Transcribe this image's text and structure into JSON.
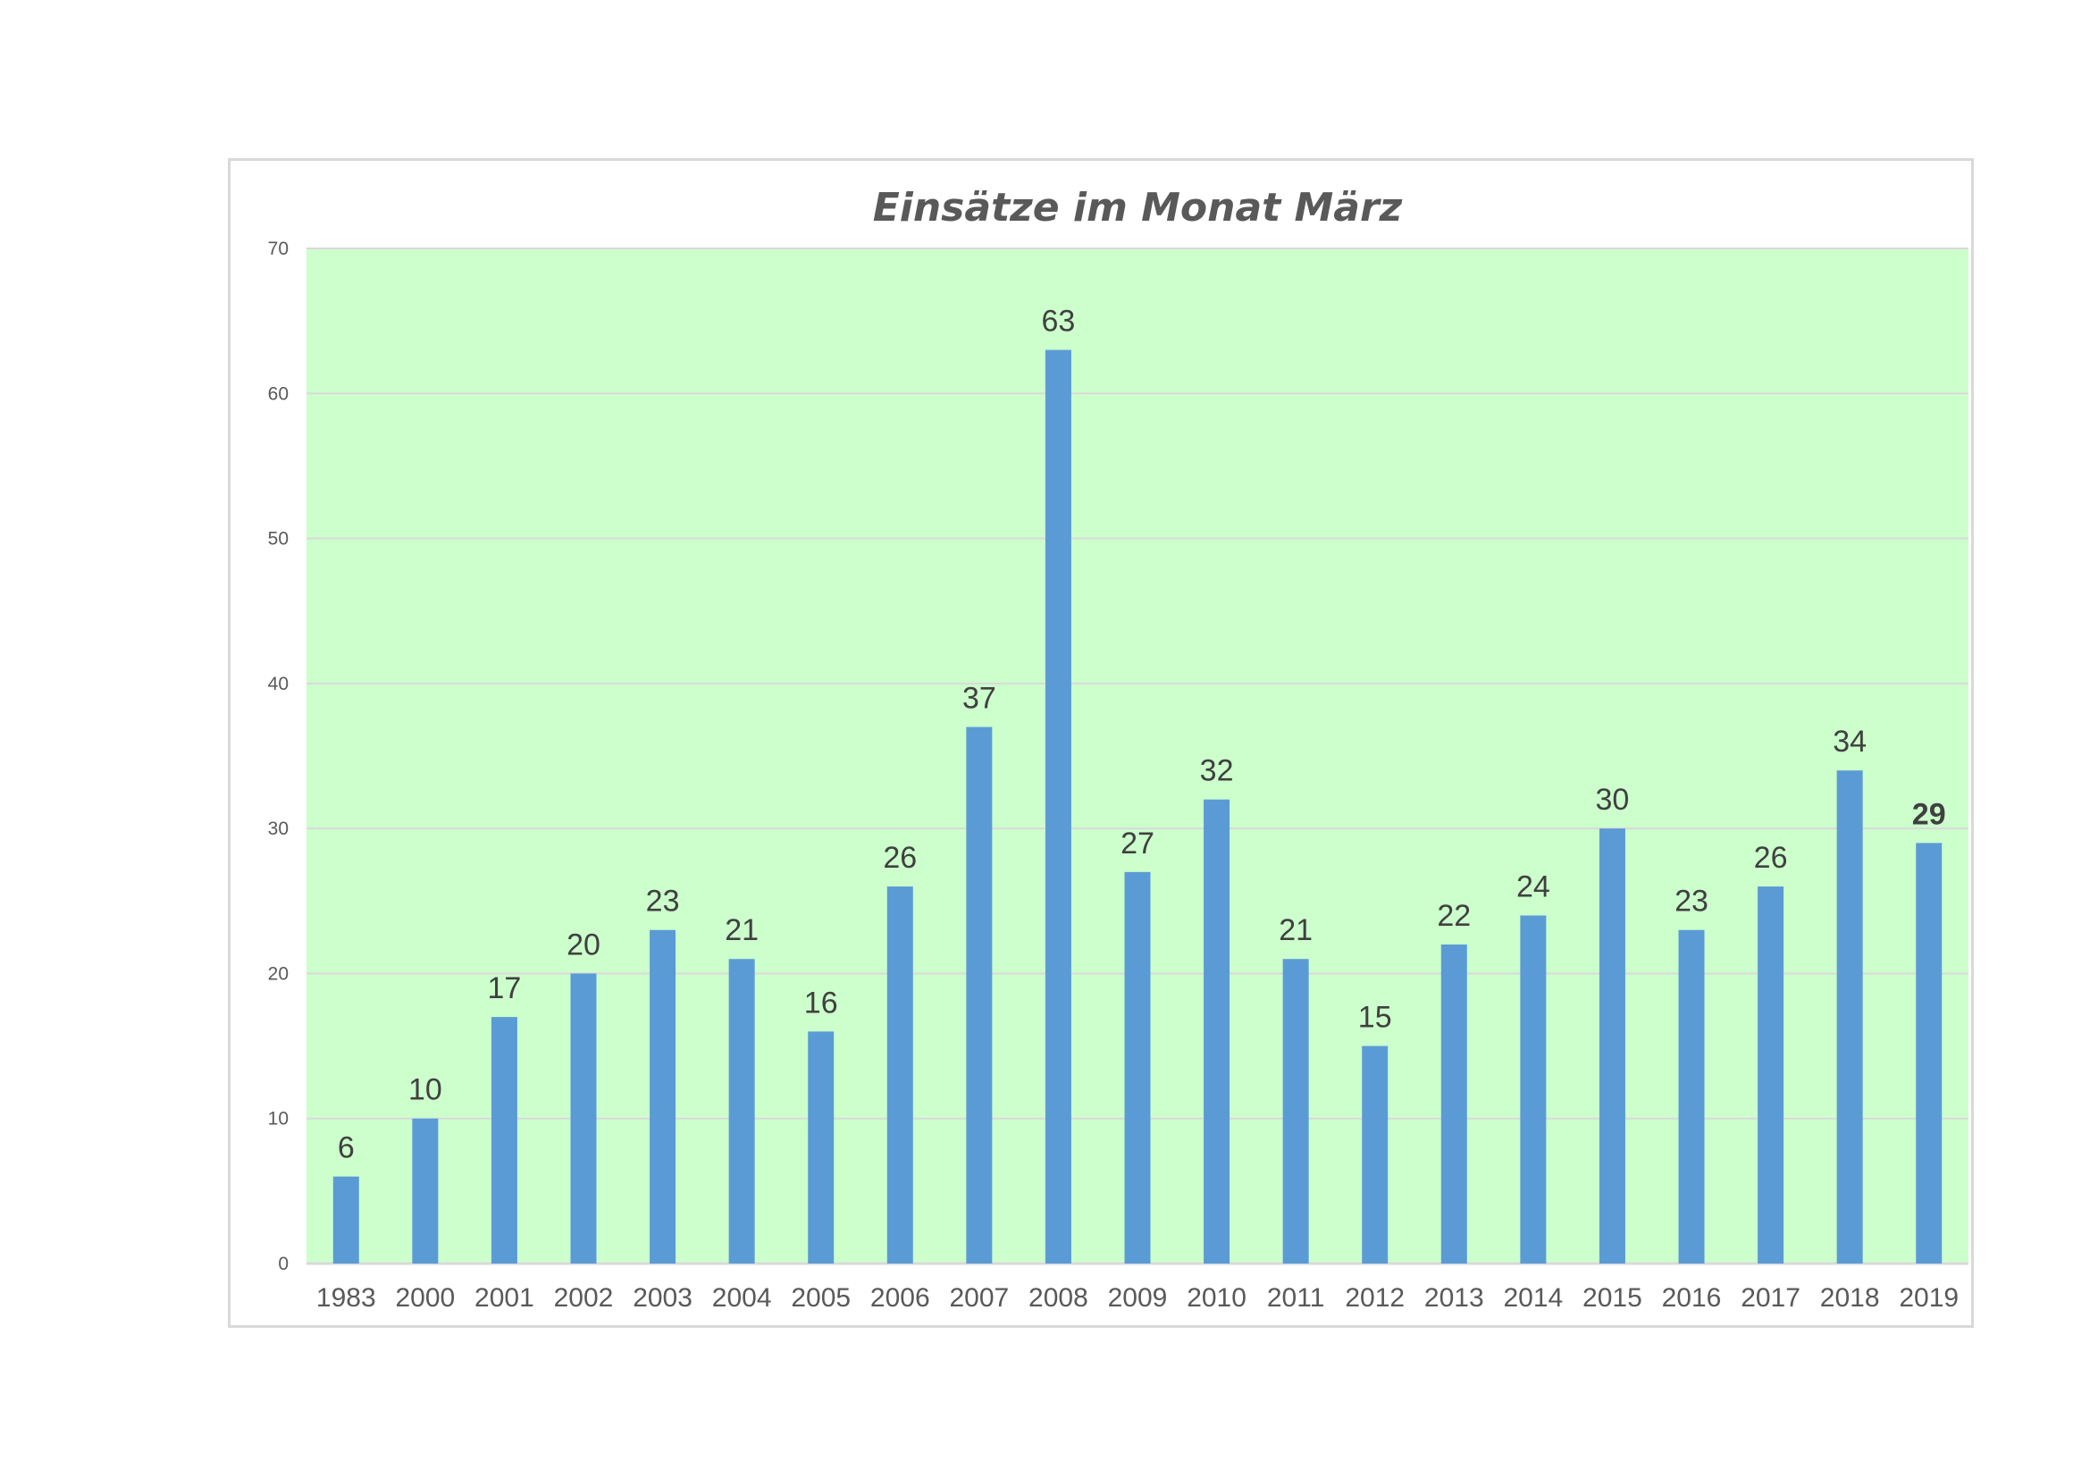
{
  "chart_data": {
    "type": "bar",
    "title": "Einsätze im Monat März",
    "xlabel": "",
    "ylabel": "",
    "ylim": [
      0,
      70
    ],
    "yticks": [
      0,
      10,
      20,
      30,
      40,
      50,
      60,
      70
    ],
    "grid": true,
    "legend": "none",
    "plot_background": "#ccffcc",
    "bar_color": "#5b9bd5",
    "gridline_color": "#d9d9d9",
    "label_color": "#404040",
    "label_highlight_color": "#ff0000",
    "highlight_index": 20,
    "categories": [
      "1983",
      "2000",
      "2001",
      "2002",
      "2003",
      "2004",
      "2005",
      "2006",
      "2007",
      "2008",
      "2009",
      "2010",
      "2011",
      "2012",
      "2013",
      "2014",
      "2015",
      "2016",
      "2017",
      "2018",
      "2019"
    ],
    "values": [
      6,
      10,
      17,
      20,
      23,
      21,
      16,
      26,
      37,
      63,
      27,
      32,
      21,
      15,
      22,
      24,
      30,
      23,
      26,
      34,
      29
    ]
  }
}
